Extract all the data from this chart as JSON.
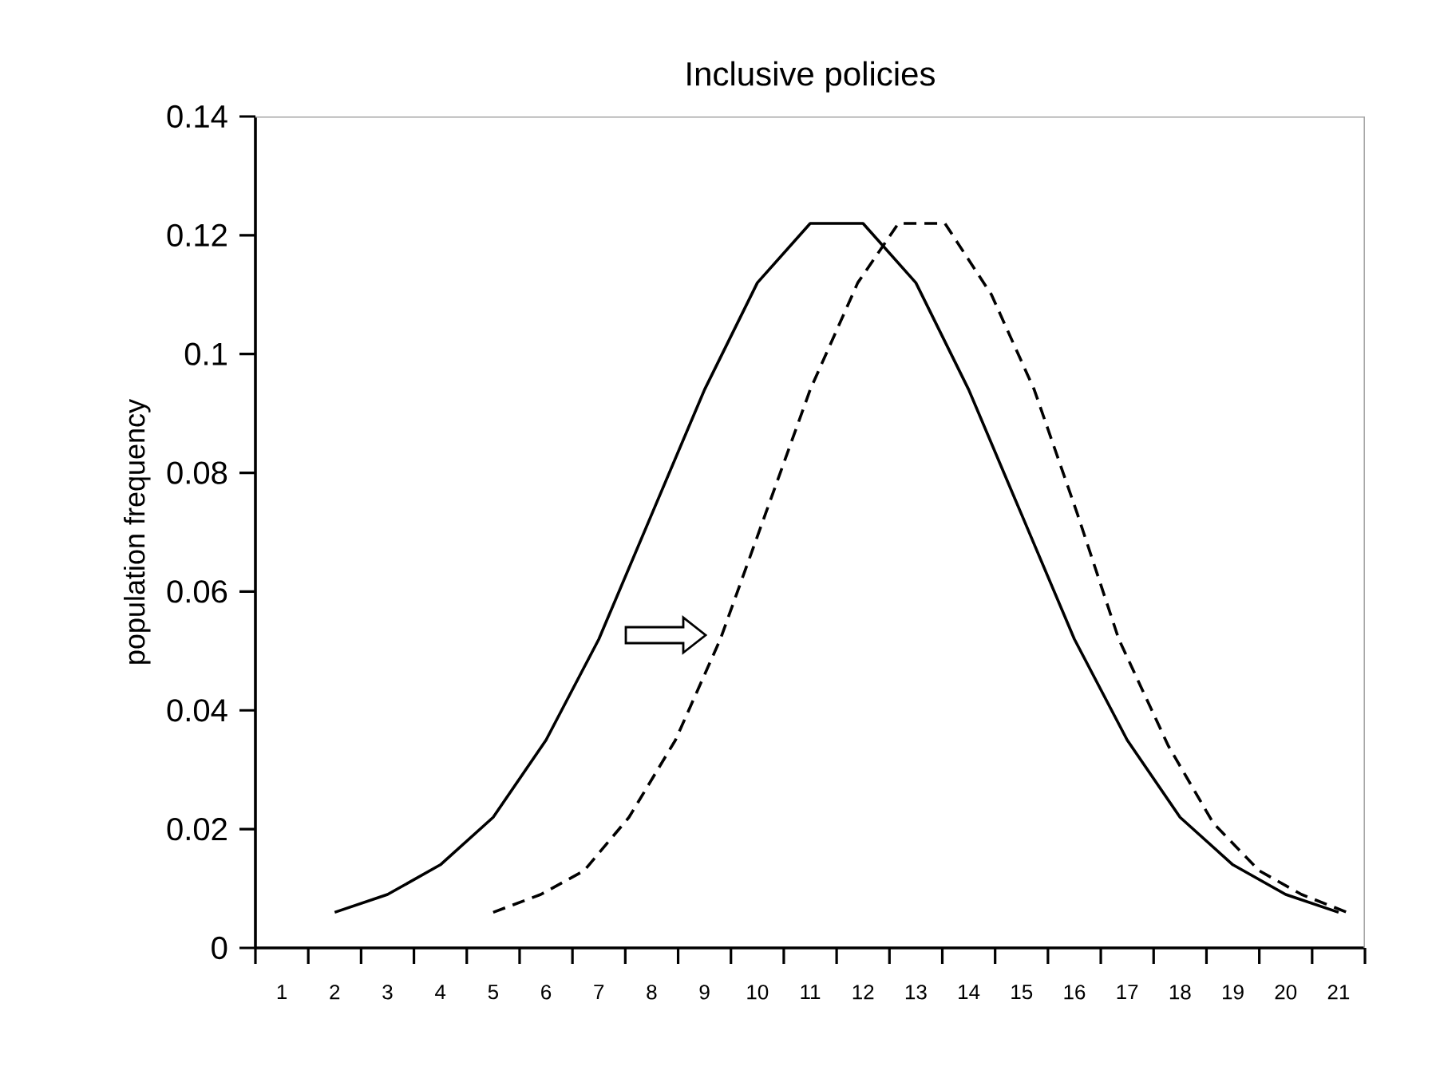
{
  "chart_data": {
    "type": "line",
    "title": "Inclusive policies",
    "ylabel": "population frequency",
    "xlim": [
      0.5,
      21.5
    ],
    "ylim": [
      0,
      0.14
    ],
    "yticks": [
      0,
      0.02,
      0.04,
      0.06,
      0.08,
      0.1,
      0.12,
      0.14
    ],
    "xticks": [
      1,
      2,
      3,
      4,
      5,
      6,
      7,
      8,
      9,
      10,
      11,
      12,
      13,
      14,
      15,
      16,
      17,
      18,
      19,
      20,
      21,
      {
        "value": 0.5,
        "label": null
      },
      {
        "value": 1.5,
        "label": null
      },
      {
        "value": 2.5,
        "label": null
      },
      {
        "value": 3.5,
        "label": null
      },
      {
        "value": 4.5,
        "label": null
      },
      {
        "value": 5.5,
        "label": null
      },
      {
        "value": 6.5,
        "label": null
      },
      {
        "value": 7.5,
        "label": null
      },
      {
        "value": 8.5,
        "label": null
      },
      {
        "value": 9.5,
        "label": null
      },
      {
        "value": 10.5,
        "label": null
      },
      {
        "value": 11.5,
        "label": null
      },
      {
        "value": 12.5,
        "label": null
      },
      {
        "value": 13.5,
        "label": null
      },
      {
        "value": 14.5,
        "label": null
      },
      {
        "value": 15.5,
        "label": null
      },
      {
        "value": 16.5,
        "label": null
      },
      {
        "value": 17.5,
        "label": null
      },
      {
        "value": 18.5,
        "label": null
      },
      {
        "value": 19.5,
        "label": null
      },
      {
        "value": 20.5,
        "label": null
      },
      {
        "value": 21.5,
        "label": null
      }
    ],
    "grid": false,
    "series": [
      {
        "color": "#000000",
        "line_style": "solid",
        "x": [
          2,
          3,
          4,
          5,
          6,
          7,
          8,
          9,
          10,
          11,
          12,
          13,
          14,
          15,
          16,
          17,
          18,
          19,
          20,
          21
        ],
        "values": [
          0.006,
          0.009,
          0.014,
          0.022,
          0.035,
          0.052,
          0.073,
          0.094,
          0.112,
          0.122,
          0.122,
          0.112,
          0.094,
          0.073,
          0.052,
          0.035,
          0.022,
          0.014,
          0.009,
          0.006
        ]
      },
      {
        "color": "#000000",
        "line_style": "dashed",
        "x": [
          5.0,
          5.9,
          6.72,
          7.57,
          8.45,
          9.3,
          10.15,
          11.0,
          11.9,
          12.67,
          13.55,
          14.43,
          15.24,
          16.06,
          16.84,
          17.78,
          18.63,
          19.5,
          20.3,
          21.16
        ],
        "values": [
          0.006,
          0.009,
          0.013,
          0.022,
          0.035,
          0.052,
          0.073,
          0.094,
          0.112,
          0.122,
          0.122,
          0.11,
          0.094,
          0.073,
          0.052,
          0.034,
          0.021,
          0.013,
          0.009,
          0.006
        ]
      }
    ]
  }
}
